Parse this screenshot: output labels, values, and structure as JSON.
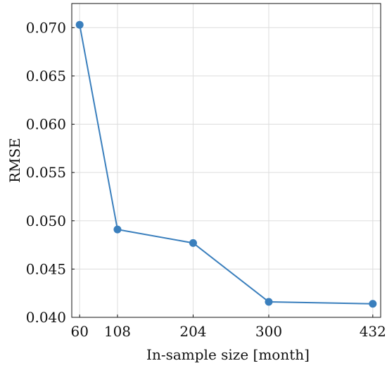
{
  "chart_data": {
    "type": "line",
    "xlabel": "In-sample size [month]",
    "ylabel": "RMSE",
    "x": [
      60,
      108,
      204,
      300,
      432
    ],
    "x_ticks": [
      "60",
      "108",
      "204",
      "300",
      "432"
    ],
    "xlim": [
      50,
      442
    ],
    "ylim": [
      0.04,
      0.0725
    ],
    "y_ticks": [
      "0.040",
      "0.045",
      "0.050",
      "0.055",
      "0.060",
      "0.065",
      "0.070"
    ],
    "grid": true,
    "series": [
      {
        "values": [
          0.0703,
          0.0491,
          0.0477,
          0.0416,
          0.0414
        ],
        "color": "#3a7fbd",
        "marker": "circle"
      }
    ]
  }
}
